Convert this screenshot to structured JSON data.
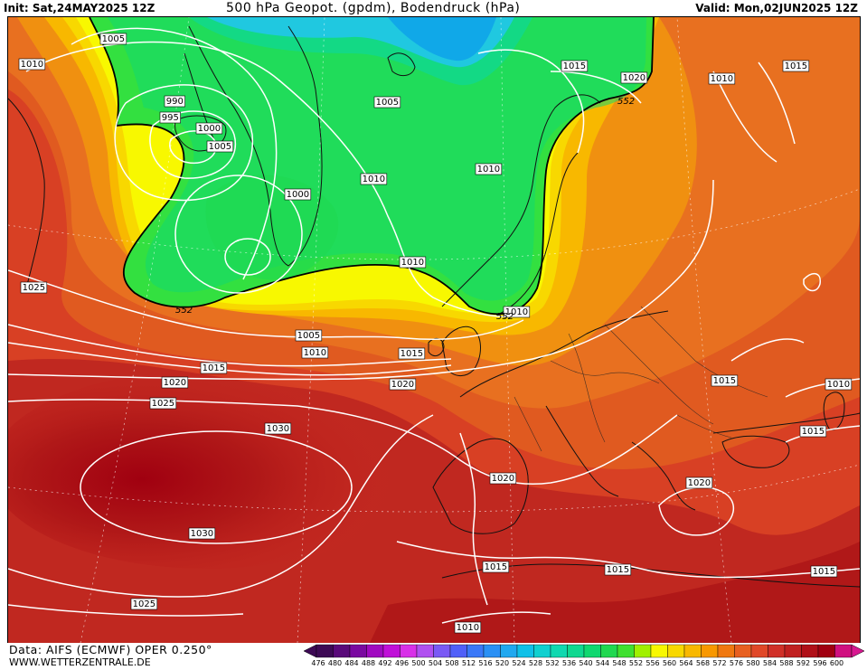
{
  "header": {
    "init": "Init: Sat,24MAY2025 12Z",
    "title": "500 hPa Geopot. (gpdm), Bodendruck (hPa)",
    "valid": "Valid: Mon,02JUN2025 12Z"
  },
  "footer": {
    "data_source": "Data: AIFS (ECMWF) OPER 0.250°",
    "website": "WWW.WETTERZENTRALE.DE"
  },
  "colorbar": {
    "ticks": [
      "476",
      "480",
      "484",
      "488",
      "492",
      "496",
      "500",
      "504",
      "508",
      "512",
      "516",
      "520",
      "524",
      "528",
      "532",
      "536",
      "540",
      "544",
      "548",
      "552",
      "556",
      "560",
      "564",
      "568",
      "572",
      "576",
      "580",
      "584",
      "588",
      "592",
      "596",
      "600"
    ],
    "colors": [
      "#3d0a55",
      "#5a0a7a",
      "#7a0aa0",
      "#a00ac0",
      "#c010d8",
      "#d830e8",
      "#b050f0",
      "#7a5af5",
      "#5060f8",
      "#3a78f8",
      "#2a90f5",
      "#20a8f0",
      "#10c0e8",
      "#10d0d0",
      "#10d8b0",
      "#10d890",
      "#10d870",
      "#20d850",
      "#40e030",
      "#a0f000",
      "#f8f800",
      "#f8d800",
      "#f8b800",
      "#f89800",
      "#f07810",
      "#e86020",
      "#e04828",
      "#d03028",
      "#c02020",
      "#b01018",
      "#a00010",
      "#d01080"
    ],
    "arrow_left_color": "#3d0a55",
    "arrow_right_color": "#d81890"
  },
  "map": {
    "colors": {
      "green_trough": "#0ad814",
      "green_light": "#33e040",
      "cyan_core": "#20c8e0",
      "blue_core": "#10a8e8",
      "yellow": "#f8e800",
      "yellow_orange": "#f8c000",
      "orange": "#f09010",
      "orange_dark": "#e87020",
      "red_orange": "#e05a20",
      "red": "#d03020",
      "dark_red": "#b01818",
      "deep_red": "#a01010"
    },
    "contour_label_552": "552",
    "isobar_labels": [
      {
        "text": "1005",
        "pos": "top-left"
      },
      {
        "text": "1010",
        "pos": "left"
      },
      {
        "text": "990",
        "pos": "iceland"
      },
      {
        "text": "995",
        "pos": "iceland"
      },
      {
        "text": "1000",
        "pos": "iceland"
      },
      {
        "text": "1005",
        "pos": "iceland"
      },
      {
        "text": "1005",
        "pos": "norwegian-sea"
      },
      {
        "text": "1010",
        "pos": "norwegian-sea"
      },
      {
        "text": "1000",
        "pos": "north-atlantic"
      },
      {
        "text": "1015",
        "pos": "barents"
      },
      {
        "text": "1020",
        "pos": "barents"
      },
      {
        "text": "1010",
        "pos": "russia"
      },
      {
        "text": "1015",
        "pos": "russia-ne"
      },
      {
        "text": "1010",
        "pos": "scandinavia"
      },
      {
        "text": "1010",
        "pos": "north-sea-n"
      },
      {
        "text": "1010",
        "pos": "north-sea"
      },
      {
        "text": "1025",
        "pos": "west"
      },
      {
        "text": "1005",
        "pos": "atlantic"
      },
      {
        "text": "1010",
        "pos": "atlantic"
      },
      {
        "text": "1015",
        "pos": "atlantic"
      },
      {
        "text": "1015",
        "pos": "atlantic-west"
      },
      {
        "text": "1020",
        "pos": "atlantic"
      },
      {
        "text": "1020",
        "pos": "biscay"
      },
      {
        "text": "1025",
        "pos": "atlantic"
      },
      {
        "text": "1030",
        "pos": "azores-high"
      },
      {
        "text": "1030",
        "pos": "azores-high-south"
      },
      {
        "text": "1025",
        "pos": "south-west"
      },
      {
        "text": "1020",
        "pos": "iberia"
      },
      {
        "text": "1015",
        "pos": "east-europe"
      },
      {
        "text": "1010",
        "pos": "east"
      },
      {
        "text": "1015",
        "pos": "black-sea"
      },
      {
        "text": "1020",
        "pos": "balkans"
      },
      {
        "text": "1015",
        "pos": "morocco"
      },
      {
        "text": "1015",
        "pos": "mediterranean"
      },
      {
        "text": "1015",
        "pos": "east-med"
      },
      {
        "text": "1010",
        "pos": "sahara"
      }
    ]
  }
}
